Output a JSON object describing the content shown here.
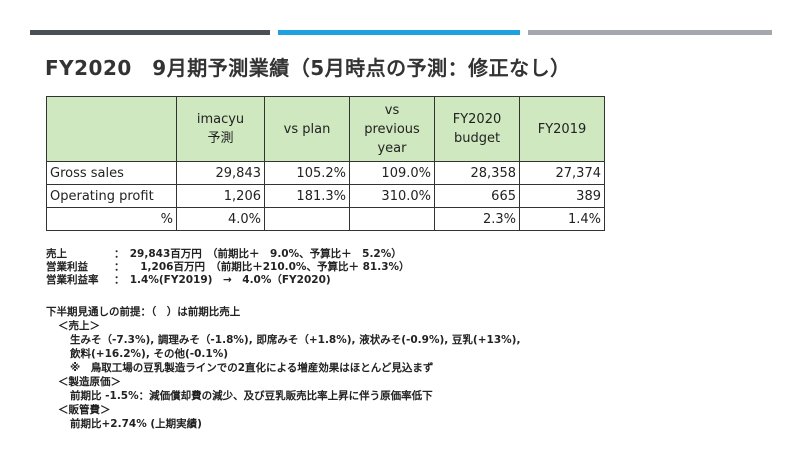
{
  "header": {
    "title": "FY2020　9月期予測業績（5月時点の予測：修正なし）"
  },
  "table": {
    "columns": [
      "",
      "imacyu\n予測",
      "vs plan",
      "vs\nprevious\nyear",
      "FY2020\nbudget",
      "FY2019"
    ],
    "rows": [
      [
        "Gross sales",
        "29,843",
        "105.2%",
        "109.0%",
        "28,358",
        "27,374"
      ],
      [
        "Operating profit",
        "1,206",
        "181.3%",
        "310.0%",
        "665",
        "389"
      ],
      [
        "%",
        "4.0%",
        "",
        "",
        "2.3%",
        "1.4%"
      ]
    ]
  },
  "summary": [
    {
      "label": "売上",
      "value": "：　29,843百万円　（前期比＋　9.0%、予算比＋　5.2%）"
    },
    {
      "label": "営業利益",
      "value": "：　　1,206百万円　（前期比＋210.0%、予算比＋ 81.3%）"
    },
    {
      "label": "営業利益率",
      "value": "：　1.4%(FY2019)　→　4.0%（FY2020)"
    }
  ],
  "notes": {
    "intro": "下半期見通しの前提：（　）は前期比売上",
    "sales_heading": "＜売上＞",
    "sales_line1": "生みそ（-7.3%), 調理みそ（-1.8%), 即席みそ（+1.8%), 液状みそ(-0.9%), 豆乳(+13%),",
    "sales_line2": "飲料(+16.2%), その他(-0.1%)",
    "sales_line3": "※　鳥取工場の豆乳製造ラインでの2直化による増産効果はほとんど見込まず",
    "cost_heading": "＜製造原価＞",
    "cost_line": "前期比 -1.5%：減価償却費の減少、及び豆乳販売比率上昇に伴う原価率低下",
    "sga_heading": "＜販管費＞",
    "sga_line": "前期比+2.74% (上期実績)"
  }
}
